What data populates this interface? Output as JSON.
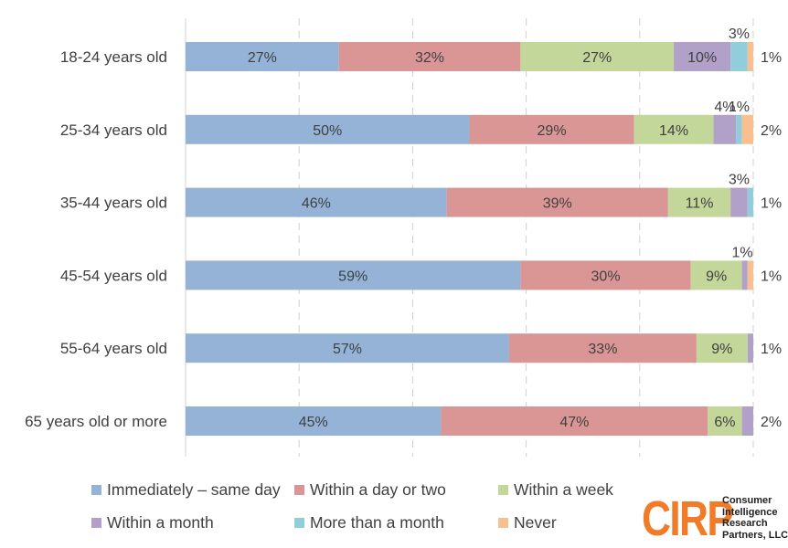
{
  "chart_data": {
    "type": "bar",
    "orientation": "horizontal",
    "stacked": true,
    "title": "",
    "xlabel": "",
    "ylabel": "",
    "xlim": [
      0,
      100
    ],
    "grid": "vertical-dashed",
    "legend_position": "bottom",
    "categories": [
      "18-24 years old",
      "25-34 years old",
      "35-44 years old",
      "45-54 years old",
      "55-64 years old",
      "65 years old or more"
    ],
    "series": [
      {
        "name": "Immediately – same day",
        "color": "#95b3d7",
        "values": [
          27,
          50,
          46,
          59,
          57,
          45
        ],
        "labels": [
          "27%",
          "50%",
          "46%",
          "59%",
          "57%",
          "45%"
        ]
      },
      {
        "name": "Within a day or two",
        "color": "#da9694",
        "values": [
          32,
          29,
          39,
          30,
          33,
          47
        ],
        "labels": [
          "32%",
          "29%",
          "39%",
          "30%",
          "33%",
          "47%"
        ]
      },
      {
        "name": "Within a week",
        "color": "#c4d79b",
        "values": [
          27,
          14,
          11,
          9,
          9,
          6
        ],
        "labels": [
          "27%",
          "14%",
          "11%",
          "9%",
          "9%",
          "6%"
        ]
      },
      {
        "name": "Within a month",
        "color": "#b1a0c7",
        "values": [
          10,
          4,
          3,
          1,
          1,
          2
        ],
        "labels": [
          "10%",
          "4%",
          "3%",
          "1%",
          "1%",
          "2%"
        ]
      },
      {
        "name": "More than a month",
        "color": "#92cddc",
        "values": [
          3,
          1,
          1,
          0,
          0,
          0
        ],
        "labels": [
          "3%",
          "1%",
          "1%",
          "",
          "",
          ""
        ]
      },
      {
        "name": "Never",
        "color": "#fabf8f",
        "values": [
          1,
          2,
          0,
          1,
          0,
          0
        ],
        "labels": [
          "1%",
          "2%",
          "",
          "1%",
          "",
          ""
        ]
      }
    ]
  },
  "logo": {
    "mark": "CIRP",
    "lines": [
      "Consumer",
      "Intelligence",
      "Research",
      "Partners, LLC"
    ]
  }
}
